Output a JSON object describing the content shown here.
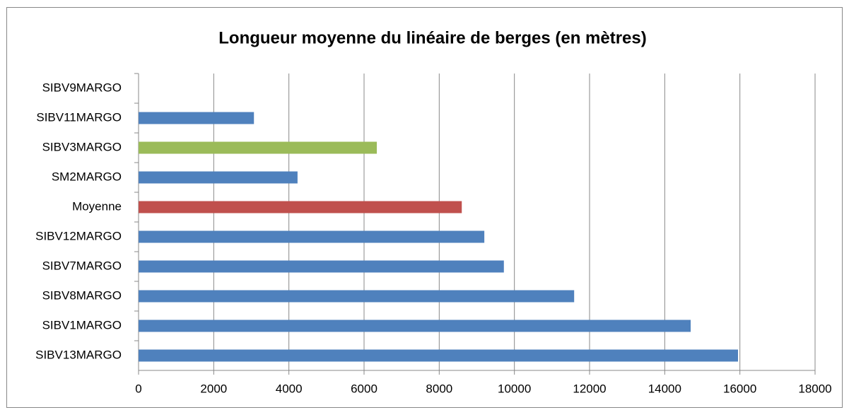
{
  "chart_data": {
    "type": "barh",
    "title": "Longueur moyenne du linéaire de berges (en mètres)",
    "categories": [
      "SIBV9MARGO",
      "SIBV11MARGO",
      "SIBV3MARGO",
      "SM2MARGO",
      "Moyenne",
      "SIBV12MARGO",
      "SIBV7MARGO",
      "SIBV8MARGO",
      "SIBV1MARGO",
      "SIBV13MARGO"
    ],
    "values": [
      null,
      3070,
      6340,
      4230,
      8600,
      9200,
      9720,
      11590,
      14690,
      15950
    ],
    "colors": [
      "#4f81bd",
      "#4f81bd",
      "#9bbb59",
      "#4f81bd",
      "#c0504d",
      "#4f81bd",
      "#4f81bd",
      "#4f81bd",
      "#4f81bd",
      "#4f81bd"
    ],
    "xlim": [
      0,
      18000
    ],
    "xticks": [
      0,
      2000,
      4000,
      6000,
      8000,
      10000,
      12000,
      14000,
      16000,
      18000
    ],
    "grid": true
  }
}
